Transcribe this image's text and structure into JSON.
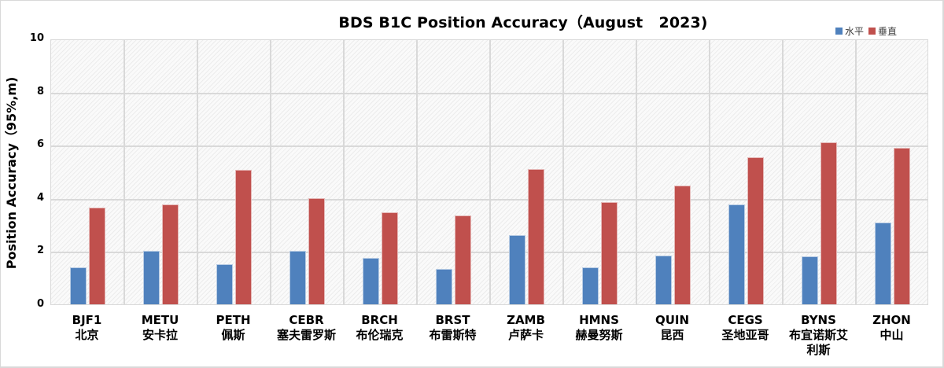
{
  "chart_data": {
    "type": "bar",
    "title": "BDS B1C Position Accuracy（August   2023)",
    "xlabel": "",
    "ylabel": "Position Accuracy（95%,m)",
    "ylim": [
      0,
      10
    ],
    "yticks": [
      "0",
      "2",
      "4",
      "6",
      "8",
      "10"
    ],
    "grid": true,
    "legend_position": "top-right",
    "categories": [
      "BJF1",
      "METU",
      "PETH",
      "CEBR",
      "BRCH",
      "BRST",
      "ZAMB",
      "HMNS",
      "QUIN",
      "CEGS",
      "BYNS",
      "ZHON"
    ],
    "category_names_cn": [
      "北京",
      "安卡拉",
      "佩斯",
      "塞夫雷罗斯",
      "布伦瑞克",
      "布雷斯特",
      "卢萨卡",
      "赫曼努斯",
      "昆西",
      "圣地亚哥",
      "布宜诺斯艾利斯",
      "中山"
    ],
    "series": [
      {
        "name": "水平",
        "color": "#4f81bd",
        "values": [
          1.4,
          2.0,
          1.5,
          2.0,
          1.75,
          1.33,
          2.6,
          1.4,
          1.83,
          3.76,
          1.8,
          3.08
        ]
      },
      {
        "name": "垂直",
        "color": "#c0504d",
        "values": [
          3.64,
          3.76,
          5.05,
          3.98,
          3.46,
          3.34,
          5.1,
          3.85,
          4.46,
          5.53,
          6.09,
          5.88
        ]
      }
    ]
  },
  "labels": {
    "title": "BDS B1C Position Accuracy（August   2023)",
    "ylabel": "Position Accuracy（95%,m)",
    "legend": [
      {
        "name": "水平",
        "color": "#4f81bd"
      },
      {
        "name": "垂直",
        "color": "#c0504d"
      }
    ],
    "xlabels": [
      {
        "code": "BJF1",
        "cn": "北京"
      },
      {
        "code": "METU",
        "cn": "安卡拉"
      },
      {
        "code": "PETH",
        "cn": "佩斯"
      },
      {
        "code": "CEBR",
        "cn": "塞夫雷罗斯"
      },
      {
        "code": "BRCH",
        "cn": "布伦瑞克"
      },
      {
        "code": "BRST",
        "cn": "布雷斯特"
      },
      {
        "code": "ZAMB",
        "cn": "卢萨卡"
      },
      {
        "code": "HMNS",
        "cn": "赫曼努斯"
      },
      {
        "code": "QUIN",
        "cn": "昆西"
      },
      {
        "code": "CEGS",
        "cn": "圣地亚哥"
      },
      {
        "code": "BYNS",
        "cn": "布宜诺斯艾利斯"
      },
      {
        "code": "ZHON",
        "cn": "中山"
      }
    ]
  }
}
